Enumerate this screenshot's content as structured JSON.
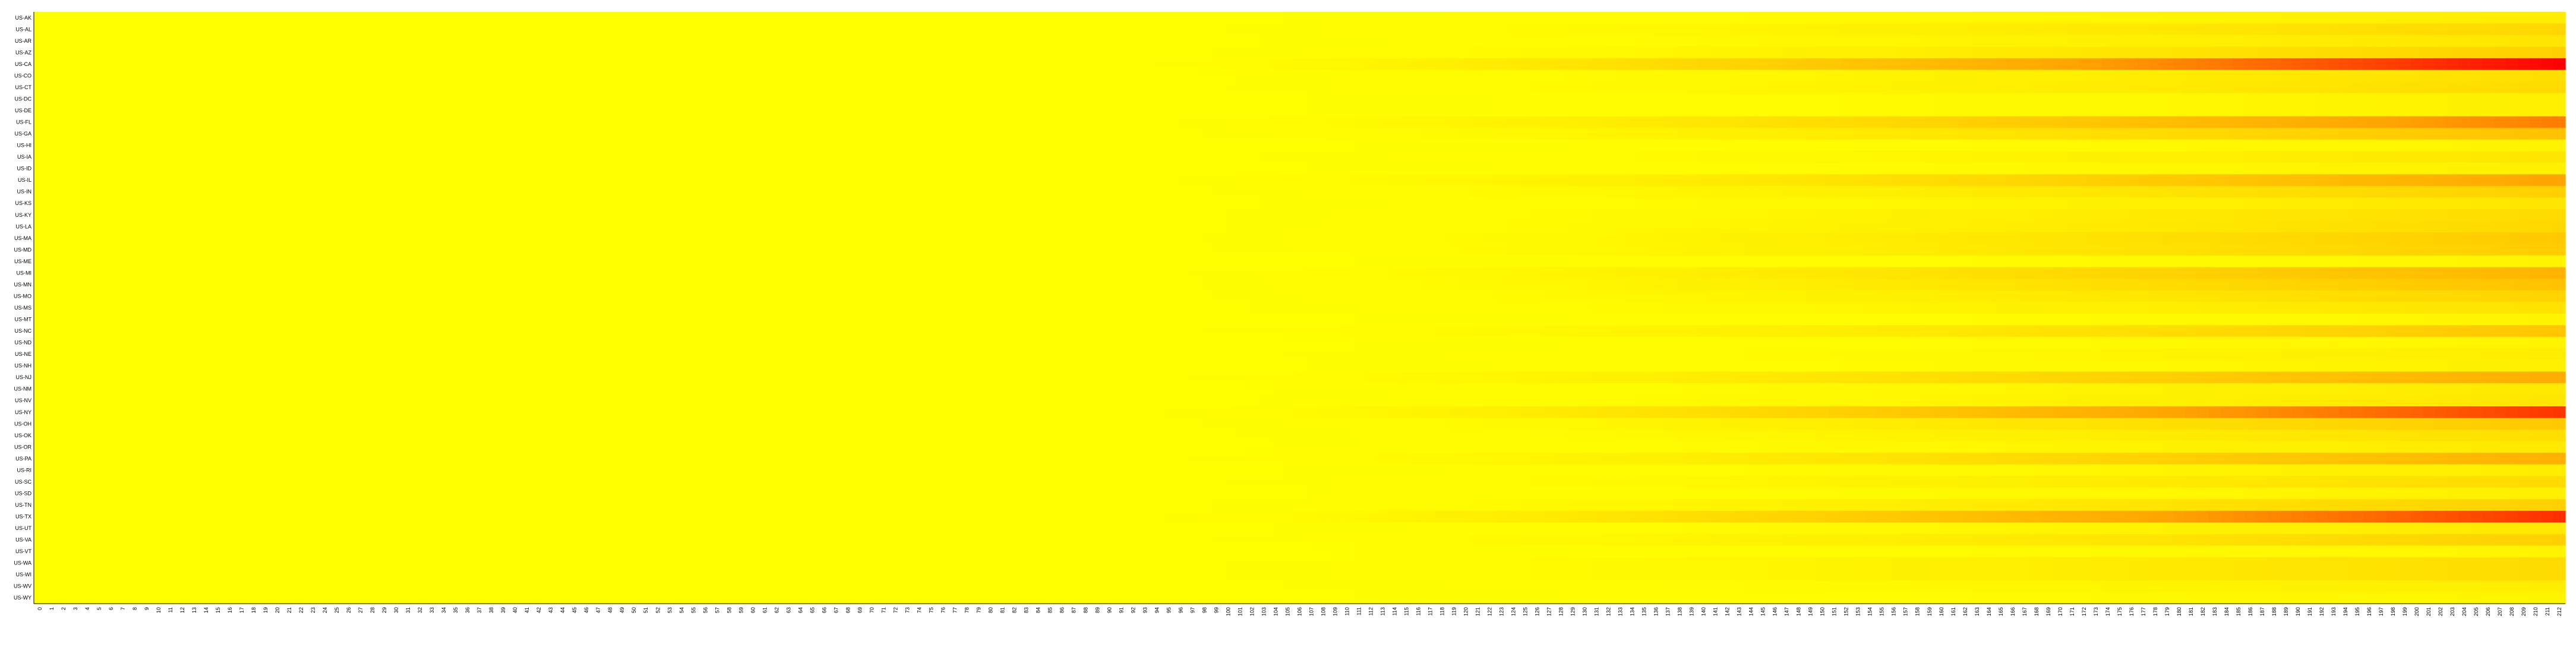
{
  "chart_data": {
    "type": "heatmap",
    "title": "",
    "xlabel": "",
    "ylabel": "",
    "grid": false,
    "legend": "none",
    "rows": [
      "US-AK",
      "US-AL",
      "US-AR",
      "US-AZ",
      "US-CA",
      "US-CO",
      "US-CT",
      "US-DC",
      "US-DE",
      "US-FL",
      "US-GA",
      "US-HI",
      "US-IA",
      "US-ID",
      "US-IL",
      "US-IN",
      "US-KS",
      "US-KY",
      "US-LA",
      "US-MA",
      "US-MD",
      "US-ME",
      "US-MI",
      "US-MN",
      "US-MO",
      "US-MS",
      "US-MT",
      "US-NC",
      "US-ND",
      "US-NE",
      "US-NH",
      "US-NJ",
      "US-NM",
      "US-NV",
      "US-NY",
      "US-OH",
      "US-OK",
      "US-OR",
      "US-PA",
      "US-RI",
      "US-SC",
      "US-SD",
      "US-TN",
      "US-TX",
      "US-UT",
      "US-VA",
      "US-VT",
      "US-WA",
      "US-WI",
      "US-WV",
      "US-WY"
    ],
    "x_range": [
      0,
      212
    ],
    "x_step": 1,
    "value_range": [
      0,
      1
    ],
    "colors": {
      "low": "#ffff00",
      "mid": "#ffa500",
      "high": "#ff0000"
    },
    "row_final_intensity": [
      0.1,
      0.22,
      0.14,
      0.26,
      1.0,
      0.18,
      0.2,
      0.08,
      0.08,
      0.62,
      0.34,
      0.06,
      0.14,
      0.08,
      0.5,
      0.26,
      0.14,
      0.2,
      0.22,
      0.3,
      0.28,
      0.06,
      0.42,
      0.34,
      0.24,
      0.16,
      0.06,
      0.32,
      0.06,
      0.1,
      0.08,
      0.46,
      0.12,
      0.14,
      0.84,
      0.3,
      0.18,
      0.12,
      0.44,
      0.1,
      0.2,
      0.08,
      0.26,
      0.86,
      0.12,
      0.26,
      0.06,
      0.2,
      0.2,
      0.1,
      0.06
    ],
    "onset": 90,
    "growth_exponent": 1.7
  }
}
